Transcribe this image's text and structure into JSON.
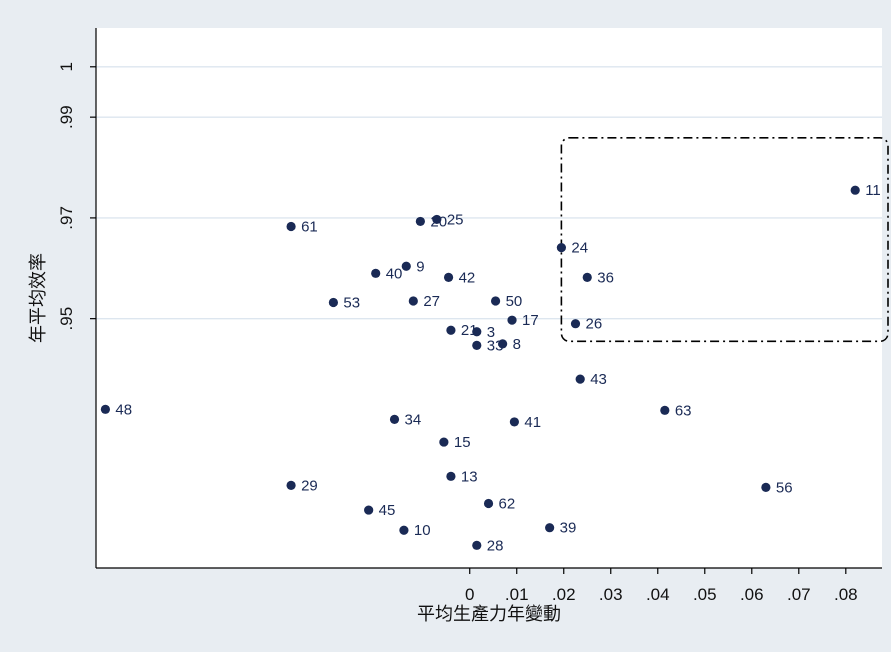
{
  "chart_data": {
    "type": "scatter",
    "xlabel": "平均生產力年變動",
    "ylabel": "年平均效率",
    "x_ticks": [
      {
        "value": 0,
        "label": "0"
      },
      {
        "value": 0.01,
        "label": ".01"
      },
      {
        "value": 0.02,
        "label": ".02"
      },
      {
        "value": 0.03,
        "label": ".03"
      },
      {
        "value": 0.04,
        "label": ".04"
      },
      {
        "value": 0.05,
        "label": ".05"
      },
      {
        "value": 0.06,
        "label": ".06"
      },
      {
        "value": 0.07,
        "label": ".07"
      },
      {
        "value": 0.08,
        "label": ".08"
      }
    ],
    "y_ticks": [
      {
        "value": 0.95,
        "label": ".95"
      },
      {
        "value": 0.97,
        "label": ".97"
      },
      {
        "value": 0.99,
        "label": ".99"
      },
      {
        "value": 1.0,
        "label": "1"
      }
    ],
    "xlim": [
      -0.0795,
      0.0877
    ],
    "ylim": [
      0.9005,
      1.0077
    ],
    "grid": true,
    "highlight_box": {
      "x0": 0.0195,
      "x1": 0.0877,
      "y0": 0.9455,
      "y1": 0.9859,
      "style": "dash-dot"
    },
    "points": [
      {
        "label": "11",
        "x": 0.082,
        "y": 0.9755
      },
      {
        "label": "24",
        "x": 0.0195,
        "y": 0.9641
      },
      {
        "label": "36",
        "x": 0.025,
        "y": 0.9582
      },
      {
        "label": "26",
        "x": 0.0225,
        "y": 0.949
      },
      {
        "label": "61",
        "x": -0.038,
        "y": 0.9683
      },
      {
        "label": "20",
        "x": -0.0105,
        "y": 0.9693
      },
      {
        "label": "25",
        "x": -0.007,
        "y": 0.9697
      },
      {
        "label": "9",
        "x": -0.0135,
        "y": 0.9604
      },
      {
        "label": "40",
        "x": -0.02,
        "y": 0.959
      },
      {
        "label": "42",
        "x": -0.0045,
        "y": 0.9582
      },
      {
        "label": "53",
        "x": -0.029,
        "y": 0.9532
      },
      {
        "label": "27",
        "x": -0.012,
        "y": 0.9535
      },
      {
        "label": "50",
        "x": 0.0055,
        "y": 0.9535
      },
      {
        "label": "17",
        "x": 0.009,
        "y": 0.9497
      },
      {
        "label": "21",
        "x": -0.004,
        "y": 0.9477
      },
      {
        "label": "3",
        "x": 0.0015,
        "y": 0.9474
      },
      {
        "label": "33",
        "x": 0.0015,
        "y": 0.9447
      },
      {
        "label": "8",
        "x": 0.007,
        "y": 0.945
      },
      {
        "label": "43",
        "x": 0.0235,
        "y": 0.938
      },
      {
        "label": "48",
        "x": -0.0775,
        "y": 0.932
      },
      {
        "label": "63",
        "x": 0.0415,
        "y": 0.9318
      },
      {
        "label": "34",
        "x": -0.016,
        "y": 0.93
      },
      {
        "label": "41",
        "x": 0.0095,
        "y": 0.9295
      },
      {
        "label": "15",
        "x": -0.0055,
        "y": 0.9255
      },
      {
        "label": "13",
        "x": -0.004,
        "y": 0.9187
      },
      {
        "label": "29",
        "x": -0.038,
        "y": 0.9169
      },
      {
        "label": "56",
        "x": 0.063,
        "y": 0.9165
      },
      {
        "label": "62",
        "x": 0.004,
        "y": 0.9133
      },
      {
        "label": "45",
        "x": -0.0215,
        "y": 0.912
      },
      {
        "label": "39",
        "x": 0.017,
        "y": 0.9085
      },
      {
        "label": "10",
        "x": -0.014,
        "y": 0.908
      },
      {
        "label": "28",
        "x": 0.0015,
        "y": 0.905
      }
    ]
  },
  "colors": {
    "background": "#e8edf2",
    "plot_background": "#ffffff",
    "marker": "#1a2a55",
    "grid": "#dde6ef",
    "axis": "#000000"
  }
}
